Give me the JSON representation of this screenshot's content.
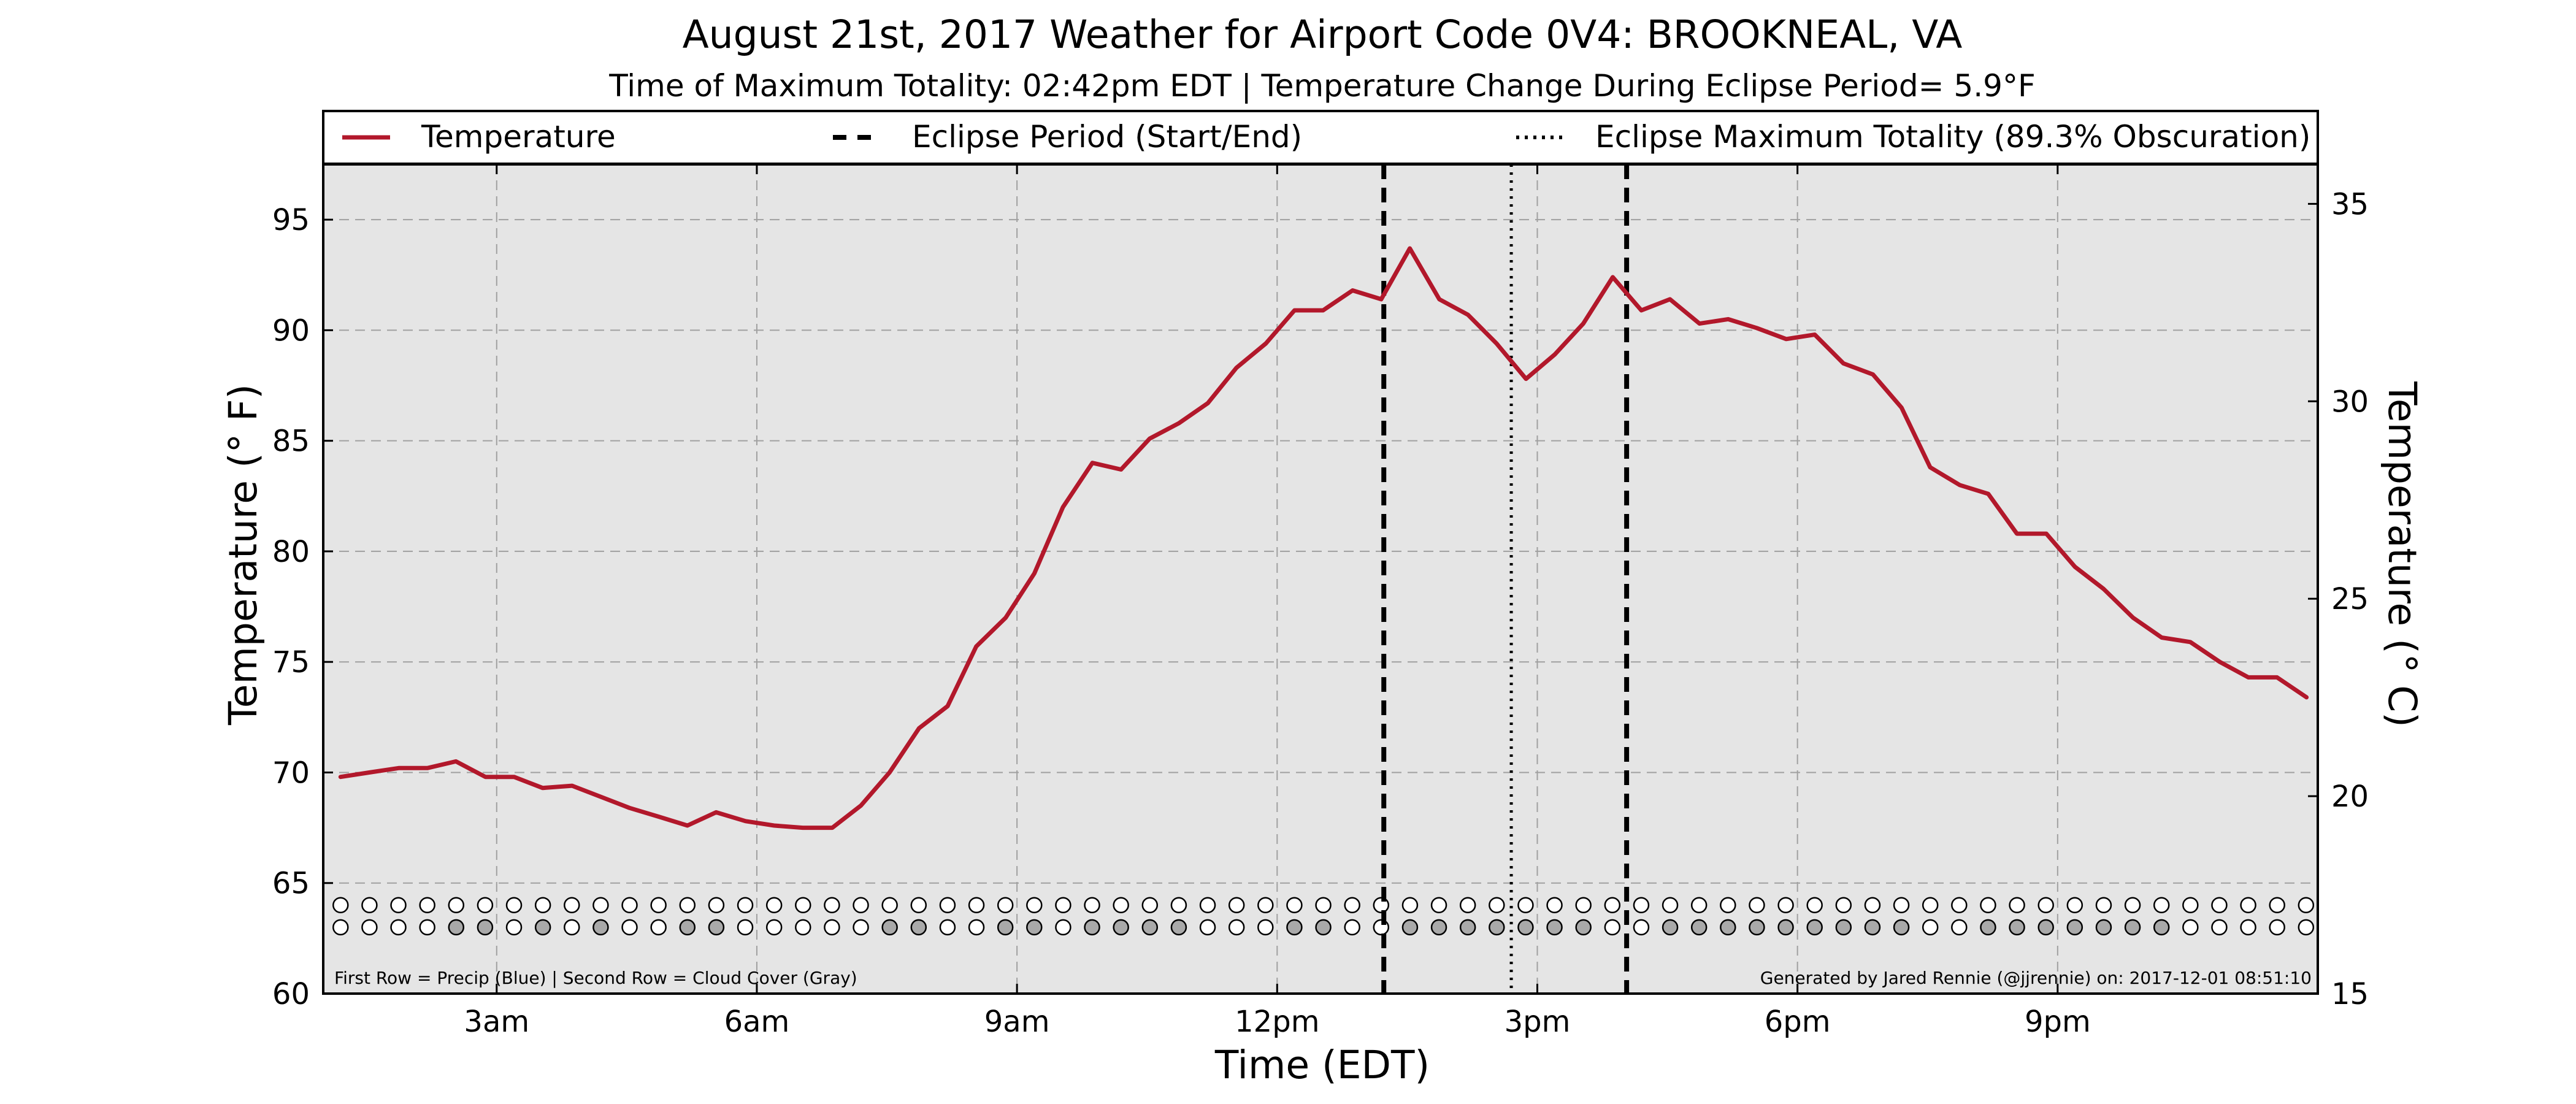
{
  "chart_data": {
    "type": "line",
    "title": "August 21st, 2017 Weather for Airport Code 0V4: BROOKNEAL, VA",
    "subtitle": "Time of Maximum Totality: 02:42pm EDT | Temperature Change During Eclipse Period= 5.9$^\\circ$F",
    "subtitle_display": "Time of Maximum Totality: 02:42pm EDT | Temperature Change During Eclipse Period= 5.9°F",
    "xlabel": "Time (EDT)",
    "ylabel": "Temperature ($^\\circ$F)",
    "ylabel_display": "Temperature (° F)",
    "ylabel_right": "Temperature ($^\\circ$C)",
    "ylabel_right_display": "Temperature (° C)",
    "xlim": [
      1.0,
      24.0
    ],
    "ylim": [
      60,
      97.5
    ],
    "ylim_right": [
      15,
      36
    ],
    "x_ticks": [
      {
        "value": 3,
        "label": "3am"
      },
      {
        "value": 6,
        "label": "6am"
      },
      {
        "value": 9,
        "label": "9am"
      },
      {
        "value": 12,
        "label": "12pm"
      },
      {
        "value": 15,
        "label": "3pm"
      },
      {
        "value": 18,
        "label": "6pm"
      },
      {
        "value": 21,
        "label": "9pm"
      }
    ],
    "y_ticks": [
      60,
      65,
      70,
      75,
      80,
      85,
      90,
      95
    ],
    "y_ticks_right": [
      15,
      20,
      25,
      30,
      35
    ],
    "grid": true,
    "legend": {
      "position": "top",
      "entries": [
        {
          "label": "Temperature",
          "style": "solid",
          "color": "#b2182b"
        },
        {
          "label": "Eclipse Period (Start/End)",
          "style": "dashed",
          "color": "#000000"
        },
        {
          "label": "Eclipse Maximum Totality (89.3% Obscuration)",
          "style": "dotted",
          "color": "#000000"
        }
      ]
    },
    "series": [
      {
        "name": "Temperature",
        "color": "#b2182b",
        "x": [
          1.2,
          1.53,
          1.87,
          2.2,
          2.53,
          2.87,
          3.2,
          3.53,
          3.87,
          4.2,
          4.53,
          4.87,
          5.2,
          5.53,
          5.87,
          6.2,
          6.53,
          6.87,
          7.2,
          7.53,
          7.87,
          8.2,
          8.53,
          8.87,
          9.2,
          9.53,
          9.87,
          10.2,
          10.53,
          10.87,
          11.2,
          11.53,
          11.87,
          12.2,
          12.53,
          12.87,
          13.2,
          13.53,
          13.87,
          14.2,
          14.53,
          14.87,
          15.2,
          15.53,
          15.87,
          16.2,
          16.53,
          16.87,
          17.2,
          17.53,
          17.87,
          18.2,
          18.53,
          18.87,
          19.2,
          19.53,
          19.87,
          20.2,
          20.53,
          20.87,
          21.2,
          21.53,
          21.87,
          22.2,
          22.53,
          22.87,
          23.2,
          23.53,
          23.87
        ],
        "values": [
          69.8,
          70.0,
          70.2,
          70.2,
          70.5,
          69.8,
          69.8,
          69.3,
          69.4,
          68.9,
          68.4,
          68.0,
          67.6,
          68.2,
          67.8,
          67.6,
          67.5,
          67.5,
          68.5,
          70.0,
          72.0,
          73.0,
          75.7,
          77.0,
          79.0,
          82.0,
          84.0,
          83.7,
          85.1,
          85.8,
          86.7,
          88.3,
          89.4,
          90.9,
          90.9,
          91.8,
          91.4,
          93.7,
          91.4,
          90.7,
          89.4,
          87.8,
          88.9,
          90.3,
          92.4,
          90.9,
          91.4,
          90.3,
          90.5,
          90.1,
          89.6,
          89.8,
          88.5,
          88.0,
          86.5,
          83.8,
          83.0,
          82.6,
          80.8,
          80.8,
          79.3,
          78.3,
          77.0,
          76.1,
          75.9,
          75.0,
          74.3,
          74.3,
          73.4
        ]
      }
    ],
    "eclipse_start": 13.23,
    "eclipse_end": 16.03,
    "eclipse_max": 14.7,
    "obscuration_percent": 89.3,
    "markers": {
      "x_start": 1.2,
      "x_step": 0.3333,
      "count": 69,
      "precip_row_y": 64.0,
      "cloud_row_y": 63.0,
      "precip_color": "#ffffff",
      "cloud_gray_color": "#a9a9a9",
      "cloud_gray_indices": [
        4,
        5,
        7,
        9,
        12,
        13,
        19,
        20,
        23,
        24,
        26,
        27,
        28,
        29,
        33,
        34,
        37,
        38,
        39,
        40,
        41,
        42,
        43,
        46,
        47,
        48,
        49,
        50,
        51,
        52,
        53,
        54,
        57,
        58,
        59,
        60,
        61,
        62,
        63
      ]
    },
    "annotations": {
      "footer_left": "First Row = Precip (Blue) | Second Row = Cloud Cover (Gray)",
      "footer_right": "Generated by Jared Rennie (@jjrennie) on: 2017-12-01 08:51:10"
    },
    "colors": {
      "plot_background": "#e5e5e5",
      "grid": "#a0a0a0",
      "temperature_line": "#b2182b"
    }
  }
}
